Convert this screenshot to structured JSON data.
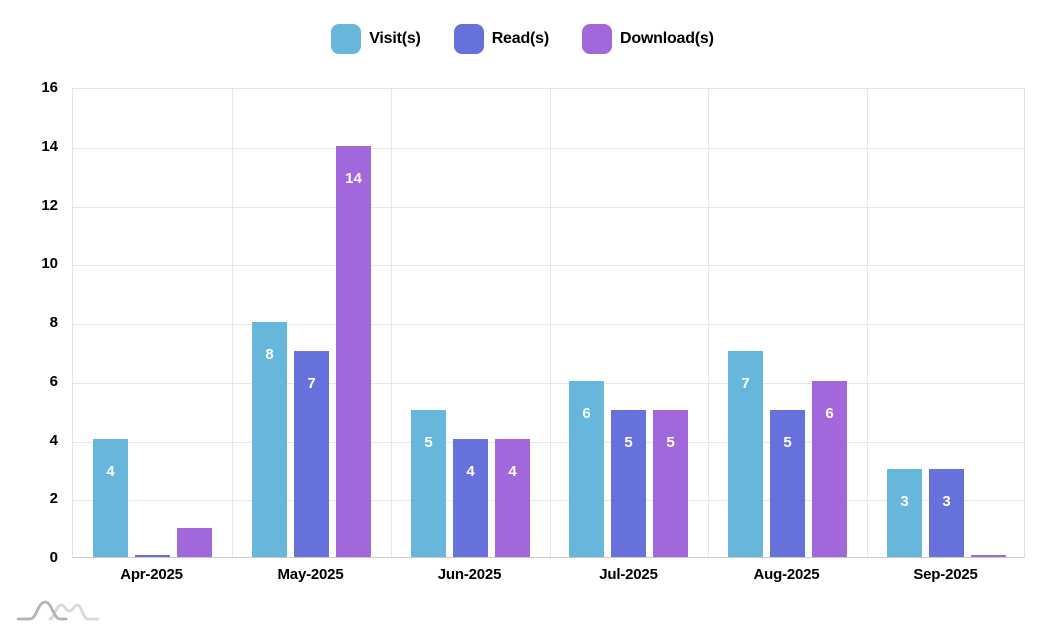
{
  "legend": {
    "items": [
      {
        "label": "Visit(s)",
        "color": "#67b7dc"
      },
      {
        "label": "Read(s)",
        "color": "#6771dc"
      },
      {
        "label": "Download(s)",
        "color": "#a367dc"
      }
    ]
  },
  "chart_data": {
    "type": "bar",
    "title": "",
    "xlabel": "",
    "ylabel": "",
    "categories": [
      "Apr-2025",
      "May-2025",
      "Jun-2025",
      "Jul-2025",
      "Aug-2025",
      "Sep-2025"
    ],
    "series": [
      {
        "name": "Visit(s)",
        "color": "#67b7dc",
        "values": [
          4,
          8,
          5,
          6,
          7,
          3
        ]
      },
      {
        "name": "Read(s)",
        "color": "#6771dc",
        "values": [
          0,
          7,
          4,
          5,
          5,
          3
        ]
      },
      {
        "name": "Download(s)",
        "color": "#a367dc",
        "values": [
          1,
          14,
          4,
          5,
          6,
          0
        ]
      }
    ],
    "ylim": [
      0,
      16
    ],
    "yticks": [
      0,
      2,
      4,
      6,
      8,
      10,
      12,
      14,
      16
    ],
    "grid": true,
    "legend_position": "top",
    "value_label_color": "#ffffff",
    "value_label_min": 2,
    "grid_color": "#e6e6e6",
    "axis_line_color": "#c9c9c9",
    "tick_text_color": "#000000"
  },
  "branding": {
    "logo_icon": "amcharts-wave-logo"
  }
}
